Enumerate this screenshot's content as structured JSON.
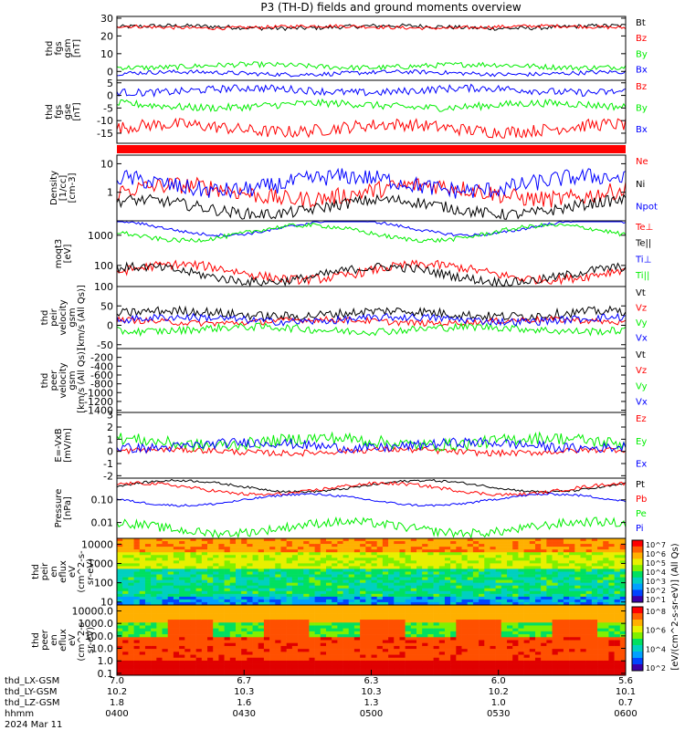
{
  "title": "P3 (TH-D) fields and ground moments overview",
  "colors": {
    "black": "#000000",
    "red": "#ff0000",
    "green": "#00ee00",
    "blue": "#0000ff"
  },
  "chart_data": {
    "type": "line",
    "panels": [
      {
        "ylabel": [
          "thd",
          "fgs",
          "gsm",
          "[nT]"
        ],
        "yscale": "linear",
        "ylim": [
          -5,
          31
        ],
        "ticks": [
          "30",
          "20",
          "10",
          "0"
        ],
        "tickvals": [
          30,
          20,
          10,
          0
        ],
        "series": [
          {
            "name": "Bt",
            "color": "black",
            "baseline": 25,
            "noise": 1.2
          },
          {
            "name": "Bz",
            "color": "red",
            "baseline": 25,
            "noise": 1.0
          },
          {
            "name": "By",
            "color": "green",
            "baseline": 3,
            "noise": 1.5
          },
          {
            "name": "Bx",
            "color": "blue",
            "baseline": -1,
            "noise": 1.2
          }
        ]
      },
      {
        "ylabel": [
          "thd",
          "fgs",
          "gse",
          "[nT]"
        ],
        "yscale": "linear",
        "ylim": [
          -19,
          6
        ],
        "ticks": [
          "5",
          "0",
          "-5",
          "-10",
          "-15"
        ],
        "tickvals": [
          5,
          0,
          -5,
          -10,
          -15
        ],
        "series": [
          {
            "name": "Bz",
            "color": "red",
            "baseline": -13,
            "noise": 2.5
          },
          {
            "name": "By",
            "color": "green",
            "baseline": -4,
            "noise": 1.5
          },
          {
            "name": "Bx",
            "color": "blue",
            "baseline": 2,
            "noise": 1.5
          }
        ]
      },
      {
        "type": "bar_strip",
        "color": "red"
      },
      {
        "ylabel": [
          "Density",
          "[1/cc]",
          "[cm-3]"
        ],
        "yscale": "log",
        "ylim": [
          0.1,
          20
        ],
        "ticks": [
          "10",
          "1"
        ],
        "tickvals": [
          10,
          1
        ],
        "series": [
          {
            "name": "Ne",
            "color": "red",
            "baseline": 1.0,
            "noise": 0.6
          },
          {
            "name": "Ni",
            "color": "black",
            "baseline": 0.3,
            "noise": 0.4
          },
          {
            "name": "Npot",
            "color": "blue",
            "baseline": 2.0,
            "noise": 0.6
          }
        ]
      },
      {
        "ylabel": [
          "moqt3",
          "[eV]"
        ],
        "yscale": "log",
        "ylim": [
          20,
          3000
        ],
        "ticks": [
          "1000",
          "100"
        ],
        "tickvals": [
          1000,
          100
        ],
        "series": [
          {
            "name": "Te⊥",
            "color": "red",
            "baseline": 60,
            "noise": 0.3
          },
          {
            "name": "Te||",
            "color": "black",
            "baseline": 50,
            "noise": 0.3
          },
          {
            "name": "Ti⊥",
            "color": "blue",
            "baseline": 1800,
            "noise": 0.1
          },
          {
            "name": "Ti||",
            "color": "green",
            "baseline": 1200,
            "noise": 0.15
          }
        ]
      },
      {
        "ylabel": [
          "thd",
          "peir",
          "velocity",
          "gsm",
          "[km/s (All Qs)]"
        ],
        "yscale": "linear",
        "ylim": [
          -60,
          100
        ],
        "ticks": [
          "100",
          "50",
          "0",
          "-50"
        ],
        "tickvals": [
          100,
          50,
          0,
          -50
        ],
        "series": [
          {
            "name": "Vt",
            "color": "black",
            "baseline": 30,
            "noise": 12
          },
          {
            "name": "Vz",
            "color": "red",
            "baseline": 10,
            "noise": 8
          },
          {
            "name": "Vy",
            "color": "green",
            "baseline": -10,
            "noise": 10
          },
          {
            "name": "Vx",
            "color": "blue",
            "baseline": 15,
            "noise": 10
          }
        ]
      },
      {
        "ylabel": [
          "thd",
          "peer",
          "velocity",
          "gsm",
          "[km/s (All Qs)]"
        ],
        "yscale": "linear",
        "ylim": [
          -1450,
          0
        ],
        "ticks": [
          "-200",
          "-400",
          "-600",
          "-800",
          "-1000",
          "-1200",
          "-1400"
        ],
        "tickvals": [
          -200,
          -400,
          -600,
          -800,
          -1000,
          -1200,
          -1400
        ],
        "series": [
          {
            "name": "Vt",
            "color": "black"
          },
          {
            "name": "Vz",
            "color": "red"
          },
          {
            "name": "Vy",
            "color": "green"
          },
          {
            "name": "Vx",
            "color": "blue"
          }
        ]
      },
      {
        "ylabel": [
          "E=-VxB",
          "[mV/m]"
        ],
        "yscale": "linear",
        "ylim": [
          -2.2,
          3.2
        ],
        "ticks": [
          "3",
          "2",
          "1",
          "0",
          "-1",
          "-2"
        ],
        "tickvals": [
          3,
          2,
          1,
          0,
          -1,
          -2
        ],
        "series": [
          {
            "name": "Ez",
            "color": "red",
            "baseline": 0,
            "noise": 0.25
          },
          {
            "name": "Ey",
            "color": "green",
            "baseline": 0.8,
            "noise": 0.5
          },
          {
            "name": "Ex",
            "color": "blue",
            "baseline": 0.5,
            "noise": 0.4
          }
        ]
      },
      {
        "ylabel": [
          "Pressure",
          "[nPa]"
        ],
        "yscale": "log",
        "ylim": [
          0.002,
          0.9
        ],
        "ticks": [
          "0.10",
          "0.01"
        ],
        "tickvals": [
          0.1,
          0.01
        ],
        "series": [
          {
            "name": "Pt",
            "color": "black",
            "baseline": 0.4,
            "noise": 0.1
          },
          {
            "name": "Pb",
            "color": "red",
            "baseline": 0.3,
            "noise": 0.15
          },
          {
            "name": "Pe",
            "color": "green",
            "baseline": 0.006,
            "noise": 0.4
          },
          {
            "name": "Pi",
            "color": "blue",
            "baseline": 0.1,
            "noise": 0.1
          }
        ]
      },
      {
        "type": "spectrogram",
        "ylabel": [
          "thd",
          "peir",
          "en",
          "eflux",
          "eV",
          "(cm^2-s-",
          "sr-eV)"
        ],
        "yscale": "log",
        "ylim": [
          7,
          20000
        ],
        "ticks": [
          "10000",
          "1000",
          "100",
          "10"
        ],
        "tickvals": [
          10000,
          1000,
          100,
          10
        ]
      },
      {
        "type": "spectrogram",
        "ylabel": [
          "thd",
          "peer",
          "en",
          "eflux",
          "eV",
          "(cm^2-s-",
          "sr-eV)"
        ],
        "yscale": "log",
        "ylim": [
          0.07,
          30000
        ],
        "ticks": [
          "10000.0",
          "1000.0",
          "100.0",
          "10.0",
          "1.0",
          "0.1"
        ],
        "tickvals": [
          10000,
          1000,
          100,
          10,
          1,
          0.1
        ]
      }
    ],
    "colorbar": {
      "label": "[eV/(cm^2-s-sr-eV)] (All Qs)",
      "ticks_upper": [
        "10^7",
        "10^6",
        "10^5",
        "10^4",
        "10^3",
        "10^2",
        "10^1"
      ],
      "ticks_lower": [
        "10^8",
        "10^6",
        "10^4",
        "10^2"
      ]
    },
    "x_axis": {
      "row_labels": [
        "thd_LX-GSM",
        "thd_LY-GSM",
        "thd_LZ-GSM",
        "hhmm",
        "2024 Mar 11"
      ],
      "columns": [
        {
          "lx": "7.0",
          "ly": "10.2",
          "lz": "1.8",
          "hhmm": "0400"
        },
        {
          "lx": "6.7",
          "ly": "10.3",
          "lz": "1.6",
          "hhmm": "0430"
        },
        {
          "lx": "6.3",
          "ly": "10.3",
          "lz": "1.3",
          "hhmm": "0500"
        },
        {
          "lx": "6.0",
          "ly": "10.2",
          "lz": "1.0",
          "hhmm": "0530"
        },
        {
          "lx": "5.6",
          "ly": "10.1",
          "lz": "0.7",
          "hhmm": "0600"
        }
      ]
    }
  }
}
